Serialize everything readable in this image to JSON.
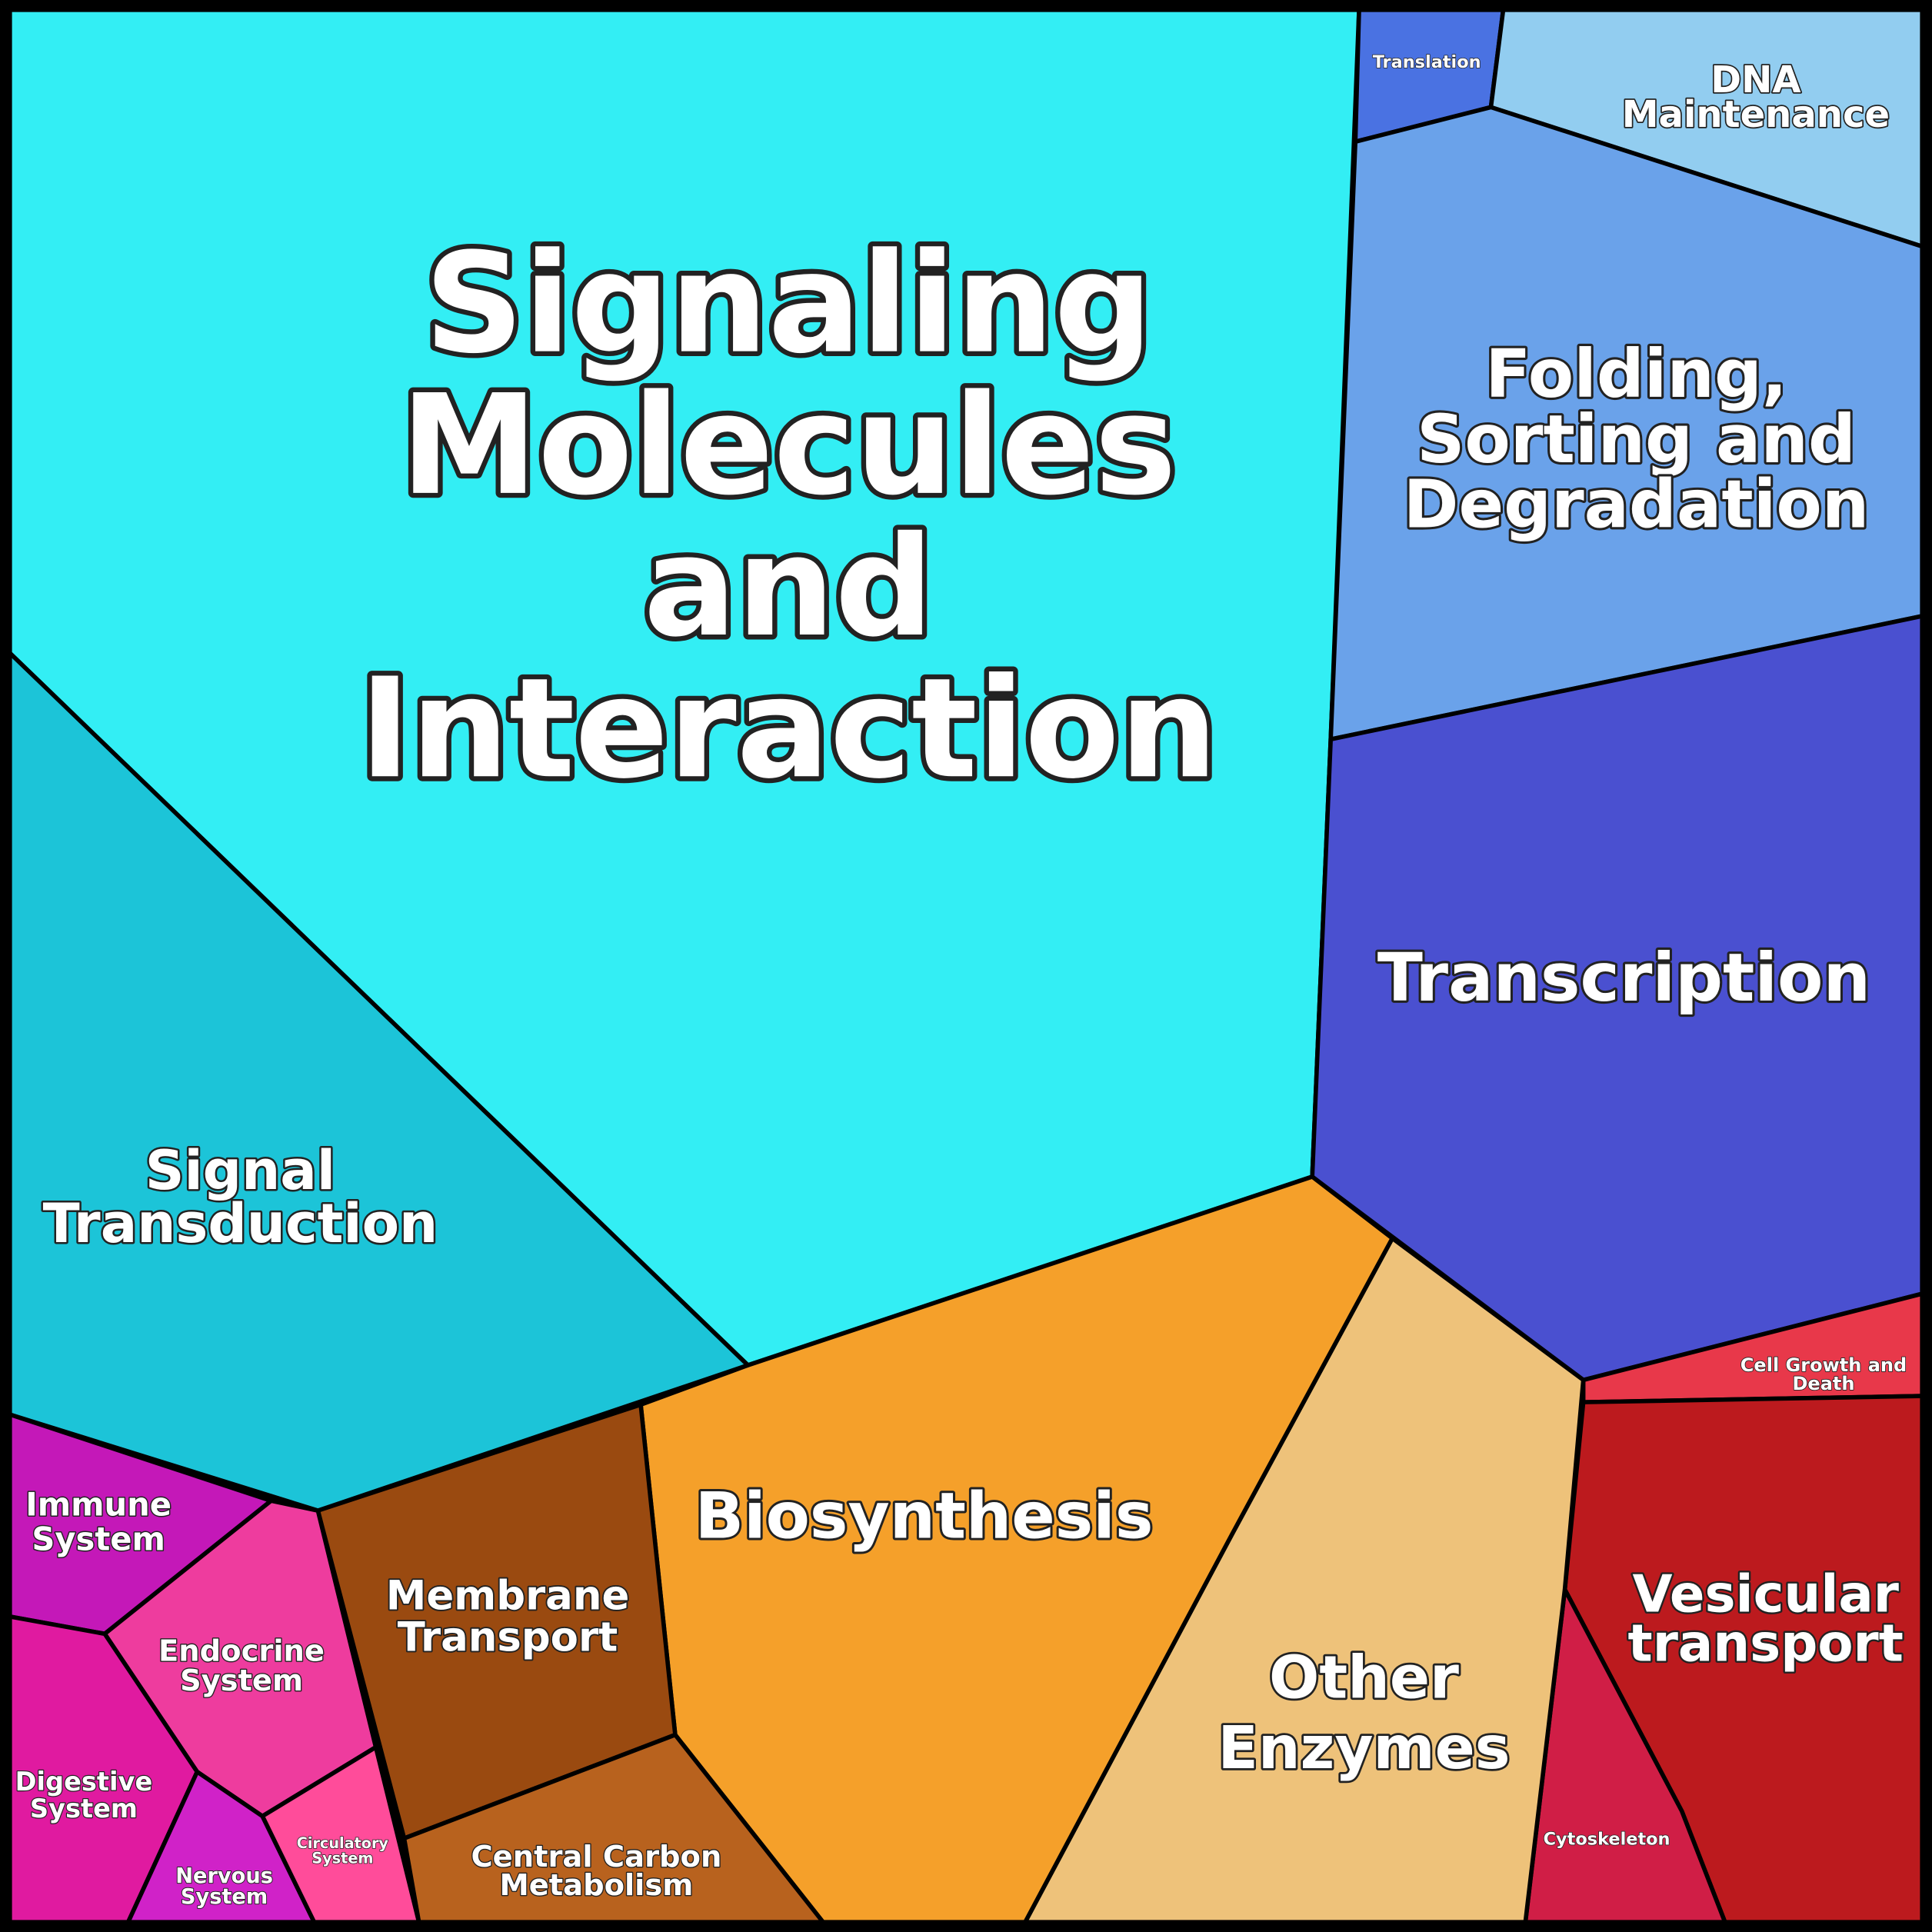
{
  "chart_data": {
    "type": "voronoi-treemap",
    "items": [
      {
        "lines": [
          "Signaling",
          "Molecules",
          "and",
          "Interaction"
        ],
        "color": "#33eef4",
        "approx_area_percent": 30
      },
      {
        "lines": [
          "Signal",
          "Transduction"
        ],
        "color": "#1cc4d8",
        "approx_area_percent": 9
      },
      {
        "lines": [
          "Translation"
        ],
        "color": "#4a72e2",
        "approx_area_percent": 0.8
      },
      {
        "lines": [
          "DNA",
          "Maintenance"
        ],
        "color": "#92cdf0",
        "approx_area_percent": 3
      },
      {
        "lines": [
          "Folding,",
          "Sorting and",
          "Degradation"
        ],
        "color": "#6aa2ea",
        "approx_area_percent": 10
      },
      {
        "lines": [
          "Transcription"
        ],
        "color": "#4a50d0",
        "approx_area_percent": 10
      },
      {
        "lines": [
          "Cell Growth and",
          "Death"
        ],
        "color": "#e8384a",
        "approx_area_percent": 1
      },
      {
        "lines": [
          "Vesicular",
          "transport"
        ],
        "color": "#bc1a1e",
        "approx_area_percent": 5
      },
      {
        "lines": [
          "Cytoskeleton"
        ],
        "color": "#d01e46",
        "approx_area_percent": 1.5
      },
      {
        "lines": [
          "Other",
          "Enzymes"
        ],
        "color": "#eec27a",
        "approx_area_percent": 7
      },
      {
        "lines": [
          "Biosynthesis"
        ],
        "color": "#f5a02a",
        "approx_area_percent": 11
      },
      {
        "lines": [
          "Membrane",
          "Transport"
        ],
        "color": "#9a4a10",
        "approx_area_percent": 4
      },
      {
        "lines": [
          "Central Carbon",
          "Metabolism"
        ],
        "color": "#b8621e",
        "approx_area_percent": 2
      },
      {
        "lines": [
          "Immune",
          "System"
        ],
        "color": "#c418b8",
        "approx_area_percent": 1.8
      },
      {
        "lines": [
          "Endocrine",
          "System"
        ],
        "color": "#ee3c9e",
        "approx_area_percent": 1.6
      },
      {
        "lines": [
          "Digestive",
          "System"
        ],
        "color": "#e01aa0",
        "approx_area_percent": 1.3
      },
      {
        "lines": [
          "Nervous",
          "System"
        ],
        "color": "#d022c8",
        "approx_area_percent": 0.7
      },
      {
        "lines": [
          "Circulatory",
          "System"
        ],
        "color": "#ff4c9a",
        "approx_area_percent": 0.6
      }
    ]
  }
}
